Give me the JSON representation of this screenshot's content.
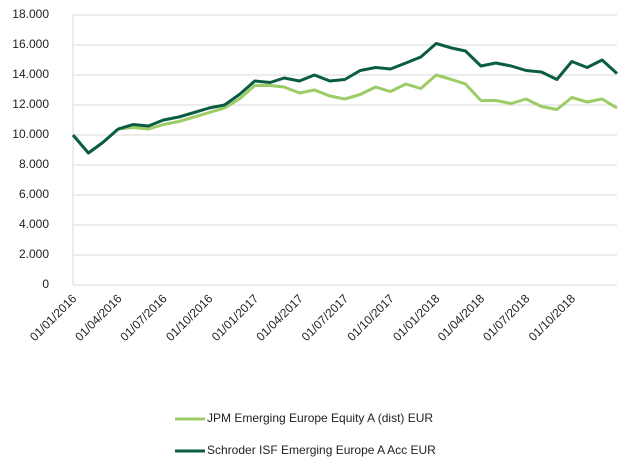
{
  "chart_data": {
    "type": "line",
    "x": [
      "01/01/2016",
      "01/02/2016",
      "01/03/2016",
      "01/04/2016",
      "01/05/2016",
      "01/06/2016",
      "01/07/2016",
      "01/08/2016",
      "01/09/2016",
      "01/10/2016",
      "01/11/2016",
      "01/12/2016",
      "01/01/2017",
      "01/02/2017",
      "01/03/2017",
      "01/04/2017",
      "01/05/2017",
      "01/06/2017",
      "01/07/2017",
      "01/08/2017",
      "01/09/2017",
      "01/10/2017",
      "01/11/2017",
      "01/12/2017",
      "01/01/2018",
      "01/02/2018",
      "01/03/2018",
      "01/04/2018",
      "01/05/2018",
      "01/06/2018",
      "01/07/2018",
      "01/08/2018",
      "01/09/2018",
      "01/10/2018",
      "01/11/2018",
      "01/12/2018",
      "31/12/2018"
    ],
    "series": [
      {
        "name": "JPM Emerging Europe Equity A (dist) EUR",
        "color": "#9ccc65",
        "values": [
          10000,
          8800,
          9500,
          10400,
          10500,
          10400,
          10700,
          10900,
          11200,
          11500,
          11800,
          12400,
          13300,
          13300,
          13200,
          12800,
          13000,
          12600,
          12400,
          12700,
          13200,
          12900,
          13400,
          13100,
          14000,
          13700,
          13400,
          12300,
          12300,
          12100,
          12400,
          11900,
          11700,
          12500,
          12200,
          12400,
          11800
        ]
      },
      {
        "name": "Schroder ISF Emerging Europe A Acc EUR",
        "color": "#0b5c45",
        "values": [
          10000,
          8800,
          9500,
          10400,
          10700,
          10600,
          11000,
          11200,
          11500,
          11800,
          12000,
          12700,
          13600,
          13500,
          13800,
          13600,
          14000,
          13600,
          13700,
          14300,
          14500,
          14400,
          14800,
          15200,
          16100,
          15800,
          15600,
          14600,
          14800,
          14600,
          14300,
          14200,
          13700,
          14900,
          14500,
          15000,
          14100
        ]
      }
    ],
    "xlim": [
      "01/01/2016",
      "31/12/2018"
    ],
    "xticks": [
      "01/01/2016",
      "01/04/2016",
      "01/07/2016",
      "01/10/2016",
      "01/01/2017",
      "01/04/2017",
      "01/07/2017",
      "01/10/2017",
      "01/01/2018",
      "01/04/2018",
      "01/07/2018",
      "01/10/2018"
    ],
    "ylim": [
      0,
      18000
    ],
    "yticks": [
      0,
      {
        "value": 2000,
        "label": "2.000"
      },
      {
        "value": 4000,
        "label": "4.000"
      },
      {
        "value": 6000,
        "label": "6.000"
      },
      {
        "value": 8000,
        "label": "8.000"
      },
      {
        "value": 10000,
        "label": "10.000"
      },
      {
        "value": 12000,
        "label": "12.000"
      },
      {
        "value": 14000,
        "label": "14.000"
      },
      {
        "value": 16000,
        "label": "16.000"
      },
      {
        "value": 18000,
        "label": "18.000"
      }
    ],
    "grid": true
  }
}
